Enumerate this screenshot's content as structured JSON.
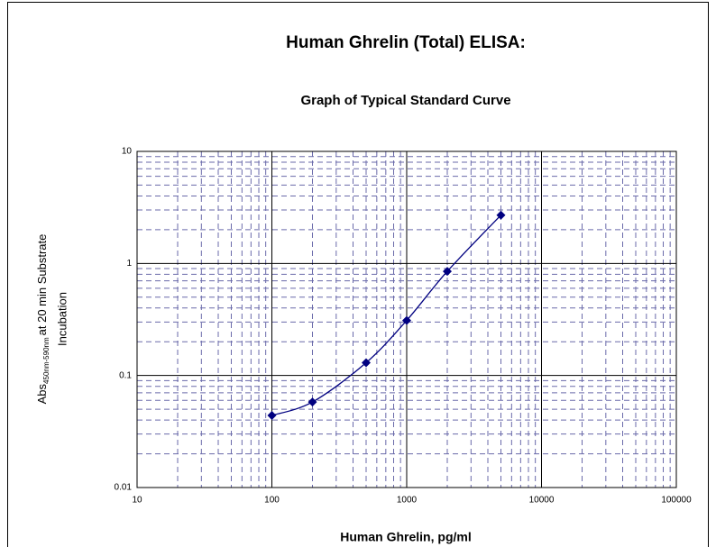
{
  "chart_data": {
    "type": "line",
    "title": "Human Ghrelin (Total) ELISA:",
    "subtitle": "Graph of Typical Standard Curve",
    "xlabel": "Human Ghrelin, pg/ml",
    "ylabel": {
      "main": "Abs",
      "subscript": "450nm-590nm",
      "rest": "at 20 min Substrate",
      "line2": "Incubation"
    },
    "x": [
      100,
      200,
      500,
      1000,
      2000,
      5000
    ],
    "series": [
      {
        "color": "#000080",
        "values": [
          0.044,
          0.058,
          0.13,
          0.31,
          0.85,
          2.7
        ]
      }
    ],
    "xlim": [
      10,
      100000
    ],
    "ylim": [
      0.01,
      10
    ],
    "xticks": [
      10,
      100,
      1000,
      10000,
      100000
    ],
    "yticks": [
      0.01,
      0.1,
      1,
      10
    ],
    "xscale": "log",
    "yscale": "log",
    "grid": true,
    "minor_grid": true,
    "smooth": true
  }
}
